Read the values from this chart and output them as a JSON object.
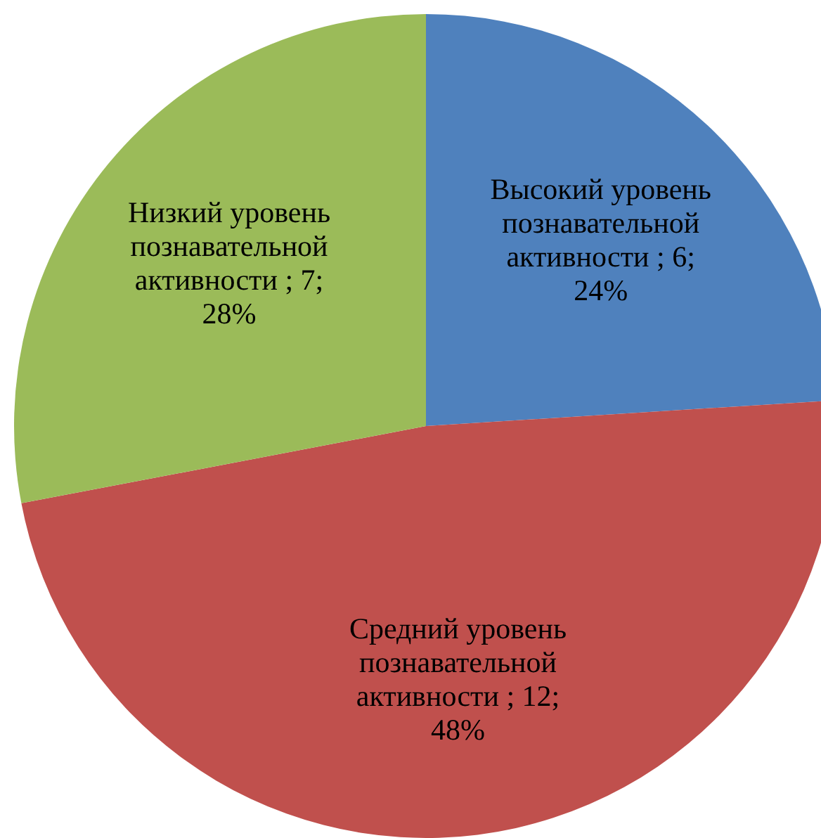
{
  "chart_data": {
    "type": "pie",
    "categories": [
      "Высокий уровень познавательной активности",
      "Средний уровень познавательной активности",
      "Низкий уровень познавательной активности"
    ],
    "values": [
      6,
      12,
      7
    ],
    "colors": [
      "#4f81bd",
      "#c0504d",
      "#9bbb59"
    ],
    "value_labels": [
      "; 6; 24%",
      "; 12; 48%",
      "; 7; 28%"
    ],
    "legend": false
  }
}
